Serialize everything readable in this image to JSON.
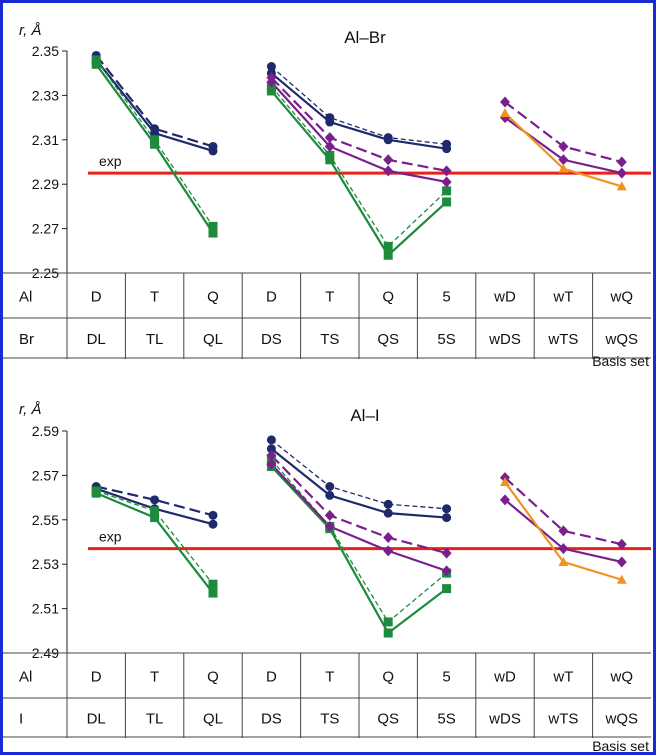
{
  "chart_data": [
    {
      "type": "line",
      "title": "Al–Br",
      "ylabel": "r, Å",
      "xlabel": "Basis set",
      "ylim": [
        2.25,
        2.35
      ],
      "yticks": [
        "2.25",
        "2.27",
        "2.29",
        "2.31",
        "2.33",
        "2.35"
      ],
      "row1_label": "Al",
      "row2_label": "Br",
      "row1": [
        "D",
        "T",
        "Q",
        "D",
        "T",
        "Q",
        "5",
        "wD",
        "wT",
        "wQ"
      ],
      "row2": [
        "DL",
        "TL",
        "QL",
        "DS",
        "TS",
        "QS",
        "5S",
        "wDS",
        "wTS",
        "wQS"
      ],
      "exp": {
        "label": "exp",
        "value": 2.295
      },
      "series": [
        {
          "color": "#1f2a6b",
          "style": "solid",
          "marker": "circle",
          "segments": [
            {
              "x": [
                0,
                1,
                2
              ],
              "y": [
                2.346,
                2.313,
                2.305
              ]
            },
            {
              "x": [
                3,
                4,
                5,
                6
              ],
              "y": [
                2.34,
                2.318,
                2.31,
                2.306
              ]
            }
          ]
        },
        {
          "color": "#1f2a6b",
          "style": "longdash",
          "marker": "circle",
          "segments": [
            {
              "x": [
                0,
                1,
                2
              ],
              "y": [
                2.348,
                2.315,
                2.307
              ]
            }
          ]
        },
        {
          "color": "#1f2a6b",
          "style": "dashed",
          "marker": "circle",
          "segments": [
            {
              "x": [
                3,
                4,
                5,
                6
              ],
              "y": [
                2.343,
                2.32,
                2.311,
                2.308
              ]
            }
          ]
        },
        {
          "color": "#1e8a3e",
          "style": "solid",
          "marker": "square",
          "segments": [
            {
              "x": [
                0,
                1,
                2
              ],
              "y": [
                2.344,
                2.308,
                2.268
              ]
            },
            {
              "x": [
                3,
                4,
                5,
                6
              ],
              "y": [
                2.332,
                2.301,
                2.258,
                2.282
              ]
            }
          ]
        },
        {
          "color": "#1e8a3e",
          "style": "dashed",
          "marker": "square",
          "segments": [
            {
              "x": [
                0,
                1,
                2
              ],
              "y": [
                2.346,
                2.31,
                2.271
              ]
            },
            {
              "x": [
                3,
                4,
                5,
                6
              ],
              "y": [
                2.334,
                2.303,
                2.262,
                2.287
              ]
            }
          ]
        },
        {
          "color": "#7a1f8c",
          "style": "solid",
          "marker": "diamond",
          "segments": [
            {
              "x": [
                3,
                4,
                5,
                6
              ],
              "y": [
                2.336,
                2.307,
                2.296,
                2.291
              ]
            },
            {
              "x": [
                7,
                8,
                9
              ],
              "y": [
                2.32,
                2.301,
                2.295
              ]
            }
          ]
        },
        {
          "color": "#7a1f8c",
          "style": "longdash",
          "marker": "diamond",
          "segments": [
            {
              "x": [
                3,
                4,
                5,
                6
              ],
              "y": [
                2.338,
                2.311,
                2.301,
                2.296
              ]
            },
            {
              "x": [
                7,
                8,
                9
              ],
              "y": [
                2.327,
                2.307,
                2.3
              ]
            }
          ]
        },
        {
          "color": "#f0941e",
          "style": "solid",
          "marker": "triangle",
          "segments": [
            {
              "x": [
                7,
                8,
                9
              ],
              "y": [
                2.322,
                2.297,
                2.289
              ]
            }
          ]
        }
      ]
    },
    {
      "type": "line",
      "title": "Al–I",
      "ylabel": "r, Å",
      "xlabel": "Basis set",
      "ylim": [
        2.49,
        2.59
      ],
      "yticks": [
        "2.49",
        "2.51",
        "2.53",
        "2.55",
        "2.57",
        "2.59"
      ],
      "row1_label": "Al",
      "row2_label": "I",
      "row1": [
        "D",
        "T",
        "Q",
        "D",
        "T",
        "Q",
        "5",
        "wD",
        "wT",
        "wQ"
      ],
      "row2": [
        "DL",
        "TL",
        "QL",
        "DS",
        "TS",
        "QS",
        "5S",
        "wDS",
        "wTS",
        "wQS"
      ],
      "exp": {
        "label": "exp",
        "value": 2.537
      },
      "series": [
        {
          "color": "#1f2a6b",
          "style": "solid",
          "marker": "circle",
          "segments": [
            {
              "x": [
                0,
                1,
                2
              ],
              "y": [
                2.564,
                2.555,
                2.548
              ]
            },
            {
              "x": [
                3,
                4,
                5,
                6
              ],
              "y": [
                2.582,
                2.561,
                2.553,
                2.551
              ]
            }
          ]
        },
        {
          "color": "#1f2a6b",
          "style": "longdash",
          "marker": "circle",
          "segments": [
            {
              "x": [
                0,
                1,
                2
              ],
              "y": [
                2.565,
                2.559,
                2.552
              ]
            }
          ]
        },
        {
          "color": "#1f2a6b",
          "style": "dashed",
          "marker": "circle",
          "segments": [
            {
              "x": [
                3,
                4,
                5,
                6
              ],
              "y": [
                2.586,
                2.565,
                2.557,
                2.555
              ]
            }
          ]
        },
        {
          "color": "#1e8a3e",
          "style": "solid",
          "marker": "square",
          "segments": [
            {
              "x": [
                0,
                1,
                2
              ],
              "y": [
                2.562,
                2.551,
                2.517
              ]
            },
            {
              "x": [
                3,
                4,
                5,
                6
              ],
              "y": [
                2.574,
                2.546,
                2.499,
                2.519
              ]
            }
          ]
        },
        {
          "color": "#1e8a3e",
          "style": "dashed",
          "marker": "square",
          "segments": [
            {
              "x": [
                0,
                1,
                2
              ],
              "y": [
                2.563,
                2.554,
                2.521
              ]
            },
            {
              "x": [
                3,
                4,
                5,
                6
              ],
              "y": [
                2.577,
                2.547,
                2.504,
                2.526
              ]
            }
          ]
        },
        {
          "color": "#7a1f8c",
          "style": "solid",
          "marker": "diamond",
          "segments": [
            {
              "x": [
                3,
                4,
                5,
                6
              ],
              "y": [
                2.575,
                2.547,
                2.536,
                2.527
              ]
            },
            {
              "x": [
                7,
                8,
                9
              ],
              "y": [
                2.559,
                2.537,
                2.531
              ]
            }
          ]
        },
        {
          "color": "#7a1f8c",
          "style": "longdash",
          "marker": "diamond",
          "segments": [
            {
              "x": [
                3,
                4,
                5,
                6
              ],
              "y": [
                2.579,
                2.552,
                2.542,
                2.535
              ]
            },
            {
              "x": [
                7,
                8,
                9
              ],
              "y": [
                2.569,
                2.545,
                2.539
              ]
            }
          ]
        },
        {
          "color": "#f0941e",
          "style": "solid",
          "marker": "triangle",
          "segments": [
            {
              "x": [
                7,
                8,
                9
              ],
              "y": [
                2.567,
                2.531,
                2.523
              ]
            }
          ]
        }
      ]
    }
  ]
}
